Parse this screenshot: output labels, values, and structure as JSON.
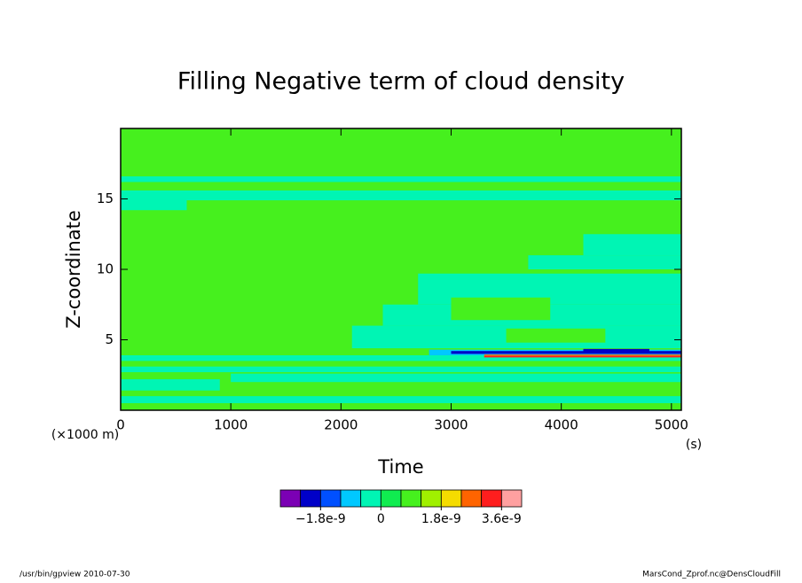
{
  "chart_data": {
    "type": "contour",
    "title": "Filling Negative term of cloud density",
    "xlabel": "Time",
    "ylabel": "Z-coordinate",
    "xunit": "(s)",
    "yunit": "(×1000 m)",
    "xlim": [
      0,
      5090
    ],
    "ylim": [
      0,
      20
    ],
    "xticks": [
      0,
      1000,
      2000,
      3000,
      4000,
      5000
    ],
    "yticks": [
      5,
      10,
      15
    ],
    "levels": [
      -3e-09,
      -2.4e-09,
      -1.8e-09,
      -1.2e-09,
      -6e-10,
      0,
      6e-10,
      1.2e-09,
      1.8e-09,
      2.4e-09,
      3e-09,
      3.6e-09,
      4.2e-09
    ],
    "colors": [
      "#7b00b4",
      "#0000c8",
      "#0050ff",
      "#00c8ff",
      "#00f5b4",
      "#10ec50",
      "#46f01e",
      "#a0f000",
      "#f5dc00",
      "#ff6400",
      "#ff1e1e",
      "#ffa0a0"
    ],
    "colorbar_ticks": [
      {
        "value": -1.8e-09,
        "label": "−1.8e-9"
      },
      0,
      {
        "value": 1.8e-09,
        "label": "1.8e-9"
      },
      {
        "value": 3.6e-09,
        "label": "3.6e-9"
      }
    ],
    "cells": [
      [
        0,
        5090,
        0,
        20,
        9e-10
      ],
      [
        0,
        5090,
        16.2,
        16.6,
        -3e-10
      ],
      [
        0,
        5090,
        14.9,
        15.6,
        -3e-10
      ],
      [
        0,
        600,
        14.2,
        15.0,
        -3e-10
      ],
      [
        4200,
        5090,
        11.0,
        12.5,
        -3e-10
      ],
      [
        3700,
        5090,
        10.0,
        11.0,
        -3e-10
      ],
      [
        2700,
        5090,
        7.5,
        9.7,
        -3e-10
      ],
      [
        2380,
        5090,
        6.0,
        7.5,
        -3e-10
      ],
      [
        2100,
        5090,
        4.4,
        6.0,
        -3e-10
      ],
      [
        3000,
        3900,
        6.4,
        8.0,
        9e-10
      ],
      [
        3500,
        4400,
        4.8,
        5.8,
        9e-10
      ],
      [
        0,
        5090,
        3.5,
        3.9,
        -3e-10
      ],
      [
        2800,
        5090,
        3.9,
        4.3,
        -9e-10
      ],
      [
        3000,
        5090,
        4.0,
        4.2,
        -2.1e-09
      ],
      [
        4200,
        4800,
        4.1,
        4.35,
        -2.1e-09
      ],
      [
        3300,
        5090,
        3.85,
        3.95,
        2.7e-09
      ],
      [
        3300,
        5090,
        3.75,
        3.85,
        3.3e-09
      ],
      [
        0,
        5090,
        2.7,
        3.1,
        -3e-10
      ],
      [
        1000,
        5090,
        2.0,
        2.6,
        -3e-10
      ],
      [
        0,
        900,
        1.4,
        2.2,
        -3e-10
      ],
      [
        0,
        5090,
        0.5,
        1.0,
        -3e-10
      ]
    ],
    "footer_left": "/usr/bin/gpview  2010-07-30",
    "footer_right": "MarsCond_Zprof.nc@DensCloudFill"
  }
}
